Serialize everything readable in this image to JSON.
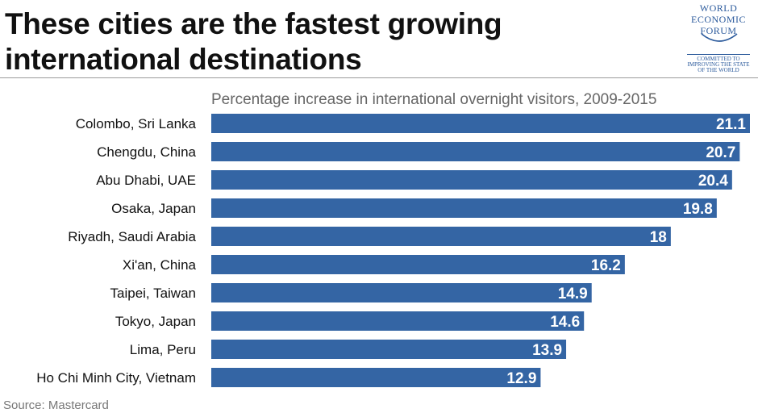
{
  "header": {
    "title_line1": "These cities are the fastest growing",
    "title_line2": "international destinations"
  },
  "logo": {
    "line1": "WORLD",
    "line2": "ECONOMIC",
    "line3": "FORUM",
    "tag1": "COMMITTED TO",
    "tag2": "IMPROVING THE STATE",
    "tag3": "OF THE WORLD",
    "color": "#2b5a9c"
  },
  "footer": {
    "source": "Source: Mastercard"
  },
  "chart_data": {
    "type": "bar",
    "orientation": "horizontal",
    "subtitle": "Percentage increase in international overnight visitors, 2009-2015",
    "categories": [
      "Colombo, Sri Lanka",
      "Chengdu, China",
      "Abu Dhabi, UAE",
      "Osaka, Japan",
      "Riyadh, Saudi Arabia",
      "Xi'an, China",
      "Taipei, Taiwan",
      "Tokyo, Japan",
      "Lima, Peru",
      "Ho Chi Minh City, Vietnam"
    ],
    "values": [
      21.1,
      20.7,
      20.4,
      19.8,
      18,
      16.2,
      14.9,
      14.6,
      13.9,
      12.9
    ],
    "value_labels": [
      "21.1",
      "20.7",
      "20.4",
      "19.8",
      "18",
      "16.2",
      "14.9",
      "14.6",
      "13.9",
      "12.9"
    ],
    "bar_color": "#3465a4",
    "xlim": [
      0,
      21.1
    ],
    "grid": false,
    "legend": "none"
  }
}
